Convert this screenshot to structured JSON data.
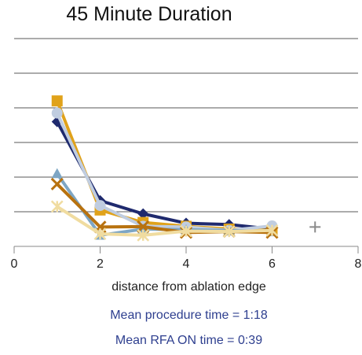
{
  "chart_data": {
    "type": "line",
    "title": "45 Minute Duration",
    "xlabel": "distance from ablation edge",
    "ylabel": "",
    "xlim": [
      0,
      8
    ],
    "x_ticks": [
      0,
      2,
      4,
      6,
      8
    ],
    "grid": true,
    "y_ticks_shown": false,
    "series": [
      {
        "color": "#1f2a6e",
        "marker": "diamond",
        "x": [
          1,
          2,
          3,
          4,
          5,
          6
        ],
        "y": [
          36,
          13.2,
          9.4,
          6.7,
          6.3,
          5.0
        ]
      },
      {
        "color": "#e0a21a",
        "marker": "square",
        "x": [
          1,
          2,
          3,
          4,
          5,
          6
        ],
        "y": [
          42,
          10.5,
          6.9,
          5.8,
          5.0,
          4.6
        ]
      },
      {
        "color": "#c0cde0",
        "marker": "circle",
        "x": [
          1,
          2,
          3,
          4,
          5,
          6
        ],
        "y": [
          38.5,
          11.8,
          5.8,
          5.6,
          4.6,
          5.9
        ]
      },
      {
        "color": "#7ea6c4",
        "marker": "triangle",
        "x": [
          1,
          2,
          3,
          4,
          5,
          6
        ],
        "y": [
          21,
          3.2,
          5.0,
          4.8,
          4.6,
          4.2
        ]
      },
      {
        "color": "#b8720f",
        "marker": "x",
        "x": [
          1,
          2,
          3,
          4,
          5,
          6
        ],
        "y": [
          18,
          5.6,
          5.7,
          4.0,
          4.3,
          4.0
        ]
      },
      {
        "color": "#f0dca0",
        "marker": "star",
        "x": [
          1,
          2,
          3,
          4,
          5,
          6
        ],
        "y": [
          11.5,
          3.6,
          3.2,
          4.4,
          4.3,
          4.6
        ]
      },
      {
        "color": "#8a8a8a",
        "marker": "plus",
        "x": [
          7
        ],
        "y": [
          5.6
        ]
      }
    ],
    "annotations": [
      "Mean procedure time = 1:18",
      "Mean RFA ON time = 0:39"
    ]
  }
}
